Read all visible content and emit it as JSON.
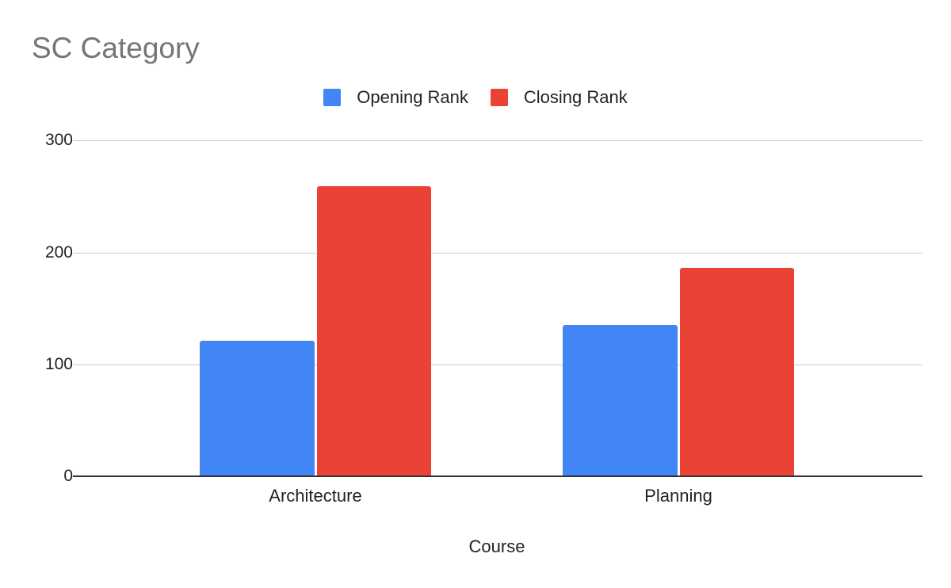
{
  "chart_data": {
    "type": "bar",
    "title": "SC Category",
    "xlabel": "Course",
    "ylabel": "",
    "categories": [
      "Architecture",
      "Planning"
    ],
    "series": [
      {
        "name": "Opening Rank",
        "color": "#4285f4",
        "values": [
          121,
          135
        ]
      },
      {
        "name": "Closing Rank",
        "color": "#ea4335",
        "values": [
          259,
          186
        ]
      }
    ],
    "ylim": [
      0,
      300
    ],
    "yticks": [
      "0",
      "100",
      "200",
      "300"
    ],
    "grid": true,
    "legend_position": "top"
  }
}
